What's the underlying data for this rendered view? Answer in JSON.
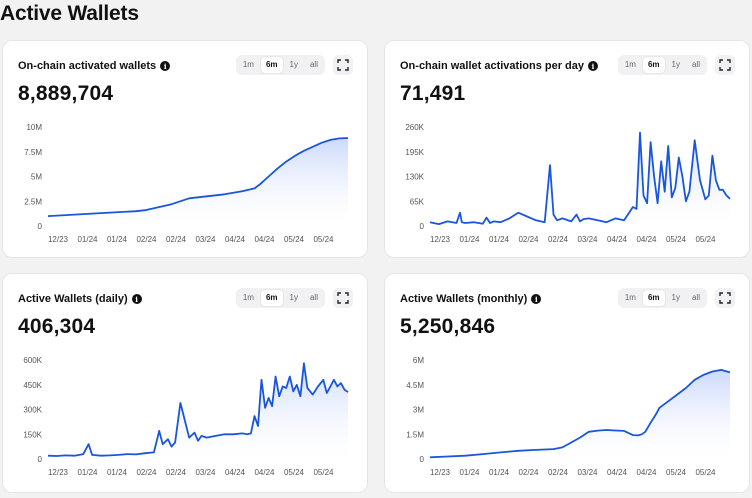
{
  "page": {
    "title": "Active Wallets"
  },
  "time_ranges": [
    "1m",
    "6m",
    "1y",
    "all"
  ],
  "selected_range": "6m",
  "colors": {
    "line": "#1a56db",
    "fill_top": "#c9d7fb",
    "fill_bottom": "#ffffff",
    "axis_text": "#555555"
  },
  "cards": [
    {
      "title": "On-chain activated wallets",
      "value": "8,889,704",
      "chart_data": {
        "type": "area",
        "x_ticks": [
          "12/23",
          "01/24",
          "01/24",
          "02/24",
          "02/24",
          "03/24",
          "04/24",
          "04/24",
          "05/24",
          "05/24"
        ],
        "y_ticks": [
          "0",
          "2.5M",
          "5M",
          "7.5M",
          "10M"
        ],
        "ylim": [
          0,
          10000000
        ],
        "x": [
          0,
          10,
          20,
          30,
          40,
          50,
          55,
          60,
          70,
          80,
          90,
          100,
          110,
          117,
          120,
          125,
          130,
          135,
          140,
          145,
          150,
          155,
          160,
          165,
          170
        ],
        "values": [
          1000000,
          1100000,
          1200000,
          1300000,
          1400000,
          1500000,
          1600000,
          1800000,
          2200000,
          2800000,
          3000000,
          3200000,
          3500000,
          3800000,
          4200000,
          5000000,
          5800000,
          6500000,
          7100000,
          7600000,
          8000000,
          8400000,
          8700000,
          8850000,
          8889704
        ]
      }
    },
    {
      "title": "On-chain wallet activations per day",
      "value": "71,491",
      "chart_data": {
        "type": "line",
        "x_ticks": [
          "12/23",
          "01/24",
          "01/24",
          "02/24",
          "02/24",
          "03/24",
          "04/24",
          "04/24",
          "05/24",
          "05/24"
        ],
        "y_ticks": [
          "0",
          "65K",
          "130K",
          "195K",
          "260K"
        ],
        "ylim": [
          0,
          260000
        ],
        "x": [
          0,
          5,
          10,
          15,
          17,
          18,
          20,
          25,
          30,
          32,
          34,
          36,
          40,
          45,
          50,
          55,
          60,
          65,
          68,
          70,
          72,
          75,
          80,
          83,
          85,
          87,
          90,
          95,
          100,
          105,
          110,
          115,
          117,
          119,
          121,
          123,
          125,
          127,
          129,
          131,
          133,
          135,
          137,
          139,
          141,
          143,
          145,
          147,
          150,
          153,
          156,
          158,
          160,
          162,
          164,
          166,
          168,
          170
        ],
        "values": [
          10000,
          5000,
          12000,
          8000,
          35000,
          10000,
          8000,
          10000,
          6000,
          22000,
          8000,
          12000,
          10000,
          20000,
          35000,
          25000,
          15000,
          10000,
          160000,
          30000,
          15000,
          20000,
          12000,
          30000,
          12000,
          18000,
          20000,
          15000,
          10000,
          20000,
          15000,
          50000,
          45000,
          245000,
          80000,
          60000,
          220000,
          130000,
          60000,
          170000,
          90000,
          210000,
          75000,
          100000,
          180000,
          130000,
          65000,
          90000,
          225000,
          120000,
          70000,
          80000,
          185000,
          120000,
          95000,
          95000,
          80000,
          71491
        ]
      }
    },
    {
      "title": "Active Wallets (daily)",
      "value": "406,304",
      "chart_data": {
        "type": "line",
        "x_ticks": [
          "12/23",
          "01/24",
          "01/24",
          "02/24",
          "02/24",
          "03/24",
          "04/24",
          "04/24",
          "05/24",
          "05/24"
        ],
        "y_ticks": [
          "0",
          "150K",
          "300K",
          "450K",
          "600K"
        ],
        "ylim": [
          0,
          600000
        ],
        "x": [
          0,
          5,
          10,
          15,
          20,
          23,
          25,
          30,
          35,
          40,
          45,
          50,
          55,
          60,
          63,
          65,
          68,
          70,
          72,
          75,
          80,
          83,
          85,
          87,
          90,
          95,
          100,
          105,
          110,
          113,
          115,
          117,
          119,
          121,
          123,
          125,
          127,
          129,
          131,
          133,
          135,
          137,
          139,
          141,
          143,
          145,
          147,
          150,
          153,
          156,
          158,
          160,
          162,
          164,
          166,
          168,
          170
        ],
        "values": [
          20000,
          18000,
          22000,
          20000,
          30000,
          90000,
          25000,
          20000,
          22000,
          25000,
          30000,
          28000,
          35000,
          40000,
          170000,
          90000,
          120000,
          75000,
          100000,
          340000,
          130000,
          160000,
          110000,
          140000,
          130000,
          140000,
          150000,
          150000,
          155000,
          150000,
          155000,
          260000,
          200000,
          480000,
          310000,
          370000,
          320000,
          500000,
          380000,
          440000,
          430000,
          500000,
          410000,
          450000,
          380000,
          580000,
          430000,
          390000,
          440000,
          480000,
          400000,
          440000,
          480000,
          440000,
          460000,
          420000,
          406304
        ]
      }
    },
    {
      "title": "Active Wallets (monthly)",
      "value": "5,250,846",
      "chart_data": {
        "type": "area",
        "x_ticks": [
          "12/23",
          "01/24",
          "01/24",
          "02/24",
          "02/24",
          "03/24",
          "04/24",
          "04/24",
          "05/24",
          "05/24"
        ],
        "y_ticks": [
          "0",
          "1.5M",
          "3M",
          "4.5M",
          "6M"
        ],
        "ylim": [
          0,
          6000000
        ],
        "x": [
          0,
          10,
          20,
          30,
          40,
          50,
          60,
          70,
          75,
          80,
          85,
          90,
          95,
          100,
          105,
          110,
          115,
          118,
          120,
          122,
          125,
          128,
          130,
          135,
          140,
          145,
          150,
          155,
          160,
          165,
          170
        ],
        "values": [
          100000,
          150000,
          200000,
          300000,
          400000,
          500000,
          550000,
          600000,
          700000,
          1000000,
          1300000,
          1650000,
          1720000,
          1760000,
          1730000,
          1700000,
          1450000,
          1430000,
          1500000,
          1650000,
          2200000,
          2700000,
          3100000,
          3500000,
          3900000,
          4300000,
          4800000,
          5100000,
          5300000,
          5400000,
          5250846
        ]
      }
    }
  ]
}
